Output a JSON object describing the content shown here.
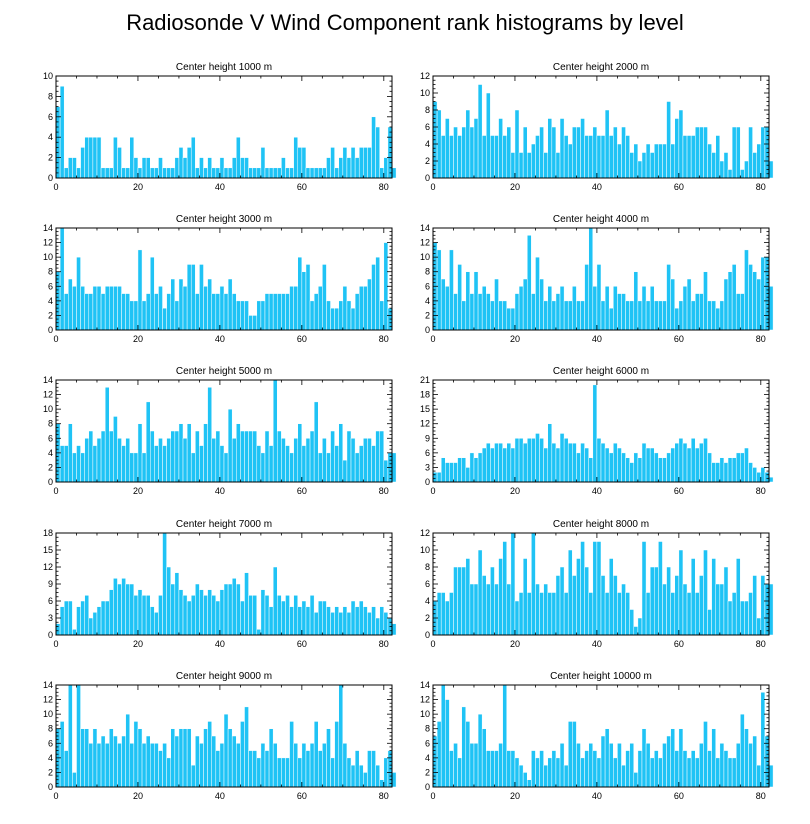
{
  "figure_title": "Radiosonde V Wind Component rank histograms by level",
  "colors": {
    "bar": "#1fc3f5",
    "frame": "#000000",
    "background": "#ffffff"
  },
  "chart_data": [
    {
      "type": "bar",
      "title": "Center height 1000 m",
      "xlim": [
        0,
        82
      ],
      "ylim": [
        0,
        10
      ],
      "xticks": [
        0,
        20,
        40,
        60,
        80
      ],
      "yticks": [
        0,
        2,
        4,
        6,
        8,
        10
      ],
      "xtick_labels": [
        "0",
        "20",
        "40",
        "60",
        "80"
      ],
      "ytick_labels": [
        "0",
        "2",
        "4",
        "6",
        "8",
        "10"
      ],
      "values": [
        7,
        9,
        1,
        2,
        2,
        1,
        3,
        4,
        4,
        4,
        4,
        1,
        1,
        1,
        4,
        3,
        1,
        1,
        4,
        2,
        1,
        2,
        2,
        1,
        1,
        2,
        1,
        1,
        1,
        2,
        3,
        2,
        3,
        4,
        1,
        2,
        1,
        2,
        1,
        1,
        2,
        1,
        1,
        2,
        4,
        2,
        2,
        1,
        1,
        1,
        3,
        1,
        1,
        1,
        1,
        2,
        1,
        1,
        4,
        3,
        3,
        1,
        1,
        1,
        1,
        1,
        2,
        3,
        1,
        2,
        3,
        2,
        3,
        2,
        3,
        3,
        3,
        6,
        5,
        1,
        2,
        5,
        1
      ]
    },
    {
      "type": "bar",
      "title": "Center height 2000 m",
      "xlim": [
        0,
        82
      ],
      "ylim": [
        0,
        12
      ],
      "xticks": [
        0,
        20,
        40,
        60,
        80
      ],
      "yticks": [
        0,
        2,
        4,
        6,
        8,
        10,
        12
      ],
      "xtick_labels": [
        "0",
        "20",
        "40",
        "60",
        "80"
      ],
      "ytick_labels": [
        "0",
        "2",
        "4",
        "6",
        "8",
        "10",
        "12"
      ],
      "values": [
        9,
        8,
        5,
        7,
        5,
        6,
        5,
        6,
        8,
        6,
        7,
        11,
        5,
        10,
        5,
        5,
        7,
        5,
        6,
        3,
        8,
        3,
        6,
        3,
        4,
        5,
        6,
        3,
        7,
        6,
        3,
        7,
        5,
        4,
        6,
        6,
        7,
        5,
        5,
        6,
        5,
        5,
        8,
        5,
        6,
        4,
        6,
        5,
        3,
        4,
        2,
        3,
        4,
        3,
        4,
        4,
        4,
        9,
        4,
        7,
        8,
        5,
        5,
        5,
        6,
        6,
        6,
        4,
        3,
        5,
        2,
        3,
        1,
        6,
        6,
        1,
        2,
        6,
        3,
        4,
        6,
        6,
        2
      ]
    },
    {
      "type": "bar",
      "title": "Center height 3000 m",
      "xlim": [
        0,
        82
      ],
      "ylim": [
        0,
        14
      ],
      "xticks": [
        0,
        20,
        40,
        60,
        80
      ],
      "yticks": [
        0,
        2,
        4,
        6,
        8,
        10,
        12,
        14
      ],
      "xtick_labels": [
        "0",
        "20",
        "40",
        "60",
        "80"
      ],
      "ytick_labels": [
        "0",
        "2",
        "4",
        "6",
        "8",
        "10",
        "12",
        "14"
      ],
      "values": [
        8,
        14,
        5,
        7,
        6,
        10,
        6,
        5,
        5,
        6,
        6,
        5,
        6,
        6,
        6,
        6,
        5,
        5,
        4,
        4,
        11,
        4,
        5,
        10,
        5,
        6,
        3,
        5,
        7,
        4,
        7,
        6,
        9,
        9,
        5,
        9,
        6,
        7,
        5,
        5,
        6,
        5,
        7,
        5,
        4,
        4,
        4,
        2,
        2,
        4,
        4,
        5,
        5,
        5,
        5,
        5,
        5,
        6,
        6,
        10,
        8,
        9,
        4,
        5,
        6,
        9,
        4,
        3,
        3,
        4,
        6,
        4,
        3,
        5,
        6,
        6,
        7,
        9,
        10,
        4,
        12,
        3
      ]
    },
    {
      "type": "bar",
      "title": "Center height 4000 m",
      "xlim": [
        0,
        82
      ],
      "ylim": [
        0,
        14
      ],
      "xticks": [
        0,
        20,
        40,
        60,
        80
      ],
      "yticks": [
        0,
        2,
        4,
        6,
        8,
        10,
        12,
        14
      ],
      "xtick_labels": [
        "0",
        "20",
        "40",
        "60",
        "80"
      ],
      "ytick_labels": [
        "0",
        "2",
        "4",
        "6",
        "8",
        "10",
        "12",
        "14"
      ],
      "values": [
        12,
        11,
        7,
        6,
        11,
        5,
        9,
        4,
        8,
        5,
        8,
        5,
        6,
        5,
        4,
        7,
        4,
        4,
        3,
        3,
        5,
        6,
        7,
        13,
        5,
        10,
        7,
        4,
        6,
        4,
        5,
        6,
        4,
        4,
        6,
        4,
        4,
        9,
        14,
        6,
        9,
        4,
        6,
        3,
        6,
        5,
        5,
        4,
        4,
        8,
        4,
        6,
        4,
        6,
        4,
        4,
        4,
        9,
        7,
        3,
        4,
        6,
        7,
        4,
        5,
        5,
        8,
        4,
        4,
        3,
        4,
        7,
        8,
        9,
        5,
        5,
        11,
        9,
        8,
        7,
        10,
        10,
        6
      ]
    },
    {
      "type": "bar",
      "title": "Center height 5000 m",
      "xlim": [
        0,
        82
      ],
      "ylim": [
        0,
        14
      ],
      "xticks": [
        0,
        20,
        40,
        60,
        80
      ],
      "yticks": [
        0,
        2,
        4,
        6,
        8,
        10,
        12,
        14
      ],
      "xtick_labels": [
        "0",
        "20",
        "40",
        "60",
        "80"
      ],
      "ytick_labels": [
        "0",
        "2",
        "4",
        "6",
        "8",
        "10",
        "12",
        "14"
      ],
      "values": [
        8,
        5,
        5,
        8,
        4,
        5,
        4,
        6,
        7,
        5,
        6,
        7,
        13,
        7,
        9,
        6,
        5,
        6,
        4,
        4,
        8,
        4,
        11,
        7,
        5,
        6,
        5,
        6,
        7,
        7,
        8,
        6,
        8,
        4,
        7,
        5,
        8,
        13,
        6,
        7,
        5,
        4,
        10,
        6,
        8,
        7,
        7,
        7,
        7,
        5,
        4,
        7,
        5,
        14,
        7,
        6,
        5,
        4,
        6,
        8,
        5,
        6,
        7,
        11,
        4,
        6,
        4,
        7,
        5,
        8,
        3,
        7,
        6,
        4,
        5,
        6,
        6,
        5,
        7,
        7,
        3,
        4,
        4
      ]
    },
    {
      "type": "bar",
      "title": "Center height 6000 m",
      "xlim": [
        0,
        82
      ],
      "ylim": [
        0,
        21
      ],
      "xticks": [
        0,
        20,
        40,
        60,
        80
      ],
      "yticks": [
        0,
        3,
        6,
        9,
        12,
        15,
        18,
        21
      ],
      "xtick_labels": [
        "0",
        "20",
        "40",
        "60",
        "80"
      ],
      "ytick_labels": [
        "0",
        "3",
        "6",
        "9",
        "12",
        "15",
        "18",
        "21"
      ],
      "values": [
        2,
        2,
        5,
        4,
        4,
        4,
        5,
        5,
        3,
        6,
        5,
        6,
        7,
        8,
        7,
        8,
        8,
        7,
        8,
        7,
        9,
        9,
        8,
        9,
        9,
        10,
        9,
        7,
        12,
        8,
        7,
        10,
        9,
        8,
        8,
        6,
        8,
        7,
        5,
        20,
        9,
        8,
        7,
        6,
        8,
        7,
        6,
        5,
        4,
        6,
        5,
        8,
        7,
        7,
        6,
        5,
        5,
        6,
        7,
        8,
        9,
        8,
        7,
        9,
        7,
        8,
        9,
        6,
        4,
        4,
        5,
        4,
        5,
        5,
        6,
        6,
        7,
        4,
        3,
        2,
        3,
        2,
        1
      ]
    },
    {
      "type": "bar",
      "title": "Center height 7000 m",
      "xlim": [
        0,
        82
      ],
      "ylim": [
        0,
        18
      ],
      "xticks": [
        0,
        20,
        40,
        60,
        80
      ],
      "yticks": [
        0,
        3,
        6,
        9,
        12,
        15,
        18
      ],
      "xtick_labels": [
        "0",
        "20",
        "40",
        "60",
        "80"
      ],
      "ytick_labels": [
        "0",
        "3",
        "6",
        "9",
        "12",
        "15",
        "18"
      ],
      "values": [
        2,
        5,
        6,
        6,
        1,
        5,
        6,
        7,
        3,
        4,
        5,
        6,
        6,
        8,
        10,
        9,
        10,
        9,
        9,
        7,
        8,
        7,
        7,
        5,
        4,
        7,
        18,
        12,
        9,
        11,
        8,
        7,
        6,
        7,
        9,
        8,
        7,
        8,
        7,
        6,
        8,
        9,
        9,
        10,
        9,
        6,
        11,
        7,
        7,
        1,
        8,
        7,
        5,
        12,
        7,
        6,
        7,
        5,
        7,
        5,
        6,
        5,
        7,
        4,
        6,
        6,
        5,
        4,
        5,
        4,
        5,
        4,
        6,
        5,
        6,
        5,
        4,
        5,
        3,
        5,
        4,
        3,
        2
      ]
    },
    {
      "type": "bar",
      "title": "Center height 8000 m",
      "xlim": [
        0,
        82
      ],
      "ylim": [
        0,
        12
      ],
      "xticks": [
        0,
        20,
        40,
        60,
        80
      ],
      "yticks": [
        0,
        2,
        4,
        6,
        8,
        10,
        12
      ],
      "xtick_labels": [
        "0",
        "20",
        "40",
        "60",
        "80"
      ],
      "ytick_labels": [
        "0",
        "2",
        "4",
        "6",
        "8",
        "10",
        "12"
      ],
      "values": [
        4,
        5,
        5,
        4,
        5,
        8,
        8,
        8,
        9,
        6,
        6,
        10,
        7,
        6,
        8,
        6,
        9,
        11,
        6,
        12,
        4,
        5,
        9,
        5,
        12,
        6,
        5,
        6,
        5,
        5,
        7,
        8,
        5,
        10,
        7,
        9,
        11,
        8,
        5,
        11,
        11,
        7,
        5,
        9,
        7,
        5,
        6,
        5,
        3,
        1,
        2,
        11,
        5,
        8,
        8,
        11,
        6,
        8,
        5,
        7,
        10,
        6,
        5,
        9,
        5,
        7,
        10,
        3,
        9,
        6,
        6,
        8,
        4,
        5,
        9,
        4,
        4,
        5,
        7,
        2,
        7,
        6,
        6
      ]
    },
    {
      "type": "bar",
      "title": "Center height 9000 m",
      "xlim": [
        0,
        82
      ],
      "ylim": [
        0,
        14
      ],
      "xticks": [
        0,
        20,
        40,
        60,
        80
      ],
      "yticks": [
        0,
        2,
        4,
        6,
        8,
        10,
        12,
        14
      ],
      "xtick_labels": [
        "0",
        "20",
        "40",
        "60",
        "80"
      ],
      "ytick_labels": [
        "0",
        "2",
        "4",
        "6",
        "8",
        "10",
        "12",
        "14"
      ],
      "values": [
        8,
        9,
        5,
        14,
        2,
        14,
        8,
        8,
        6,
        8,
        6,
        7,
        6,
        8,
        7,
        6,
        7,
        10,
        6,
        9,
        8,
        6,
        7,
        6,
        6,
        5,
        6,
        4,
        8,
        7,
        8,
        8,
        8,
        3,
        7,
        6,
        8,
        9,
        7,
        5,
        6,
        10,
        8,
        7,
        6,
        9,
        11,
        5,
        5,
        4,
        6,
        5,
        8,
        6,
        4,
        4,
        4,
        9,
        6,
        4,
        6,
        5,
        6,
        9,
        5,
        6,
        8,
        4,
        9,
        14,
        6,
        4,
        3,
        5,
        3,
        2,
        5,
        5,
        3,
        1,
        4,
        5,
        2
      ]
    },
    {
      "type": "bar",
      "title": "Center height 10000 m",
      "xlim": [
        0,
        82
      ],
      "ylim": [
        0,
        14
      ],
      "xticks": [
        0,
        20,
        40,
        60,
        80
      ],
      "yticks": [
        0,
        2,
        4,
        6,
        8,
        10,
        12,
        14
      ],
      "xtick_labels": [
        "0",
        "20",
        "40",
        "60",
        "80"
      ],
      "ytick_labels": [
        "0",
        "2",
        "4",
        "6",
        "8",
        "10",
        "12",
        "14"
      ],
      "values": [
        7,
        9,
        14,
        12,
        5,
        6,
        4,
        11,
        9,
        6,
        6,
        10,
        8,
        5,
        5,
        5,
        6,
        14,
        5,
        5,
        4,
        3,
        2,
        1,
        5,
        4,
        5,
        3,
        4,
        5,
        4,
        6,
        3,
        9,
        9,
        6,
        4,
        5,
        6,
        5,
        4,
        7,
        8,
        6,
        4,
        6,
        3,
        5,
        6,
        2,
        5,
        8,
        6,
        4,
        5,
        4,
        6,
        7,
        8,
        5,
        8,
        5,
        4,
        5,
        4,
        6,
        9,
        5,
        8,
        4,
        6,
        5,
        4,
        4,
        6,
        10,
        8,
        6,
        7,
        3,
        13,
        7,
        3
      ]
    }
  ]
}
